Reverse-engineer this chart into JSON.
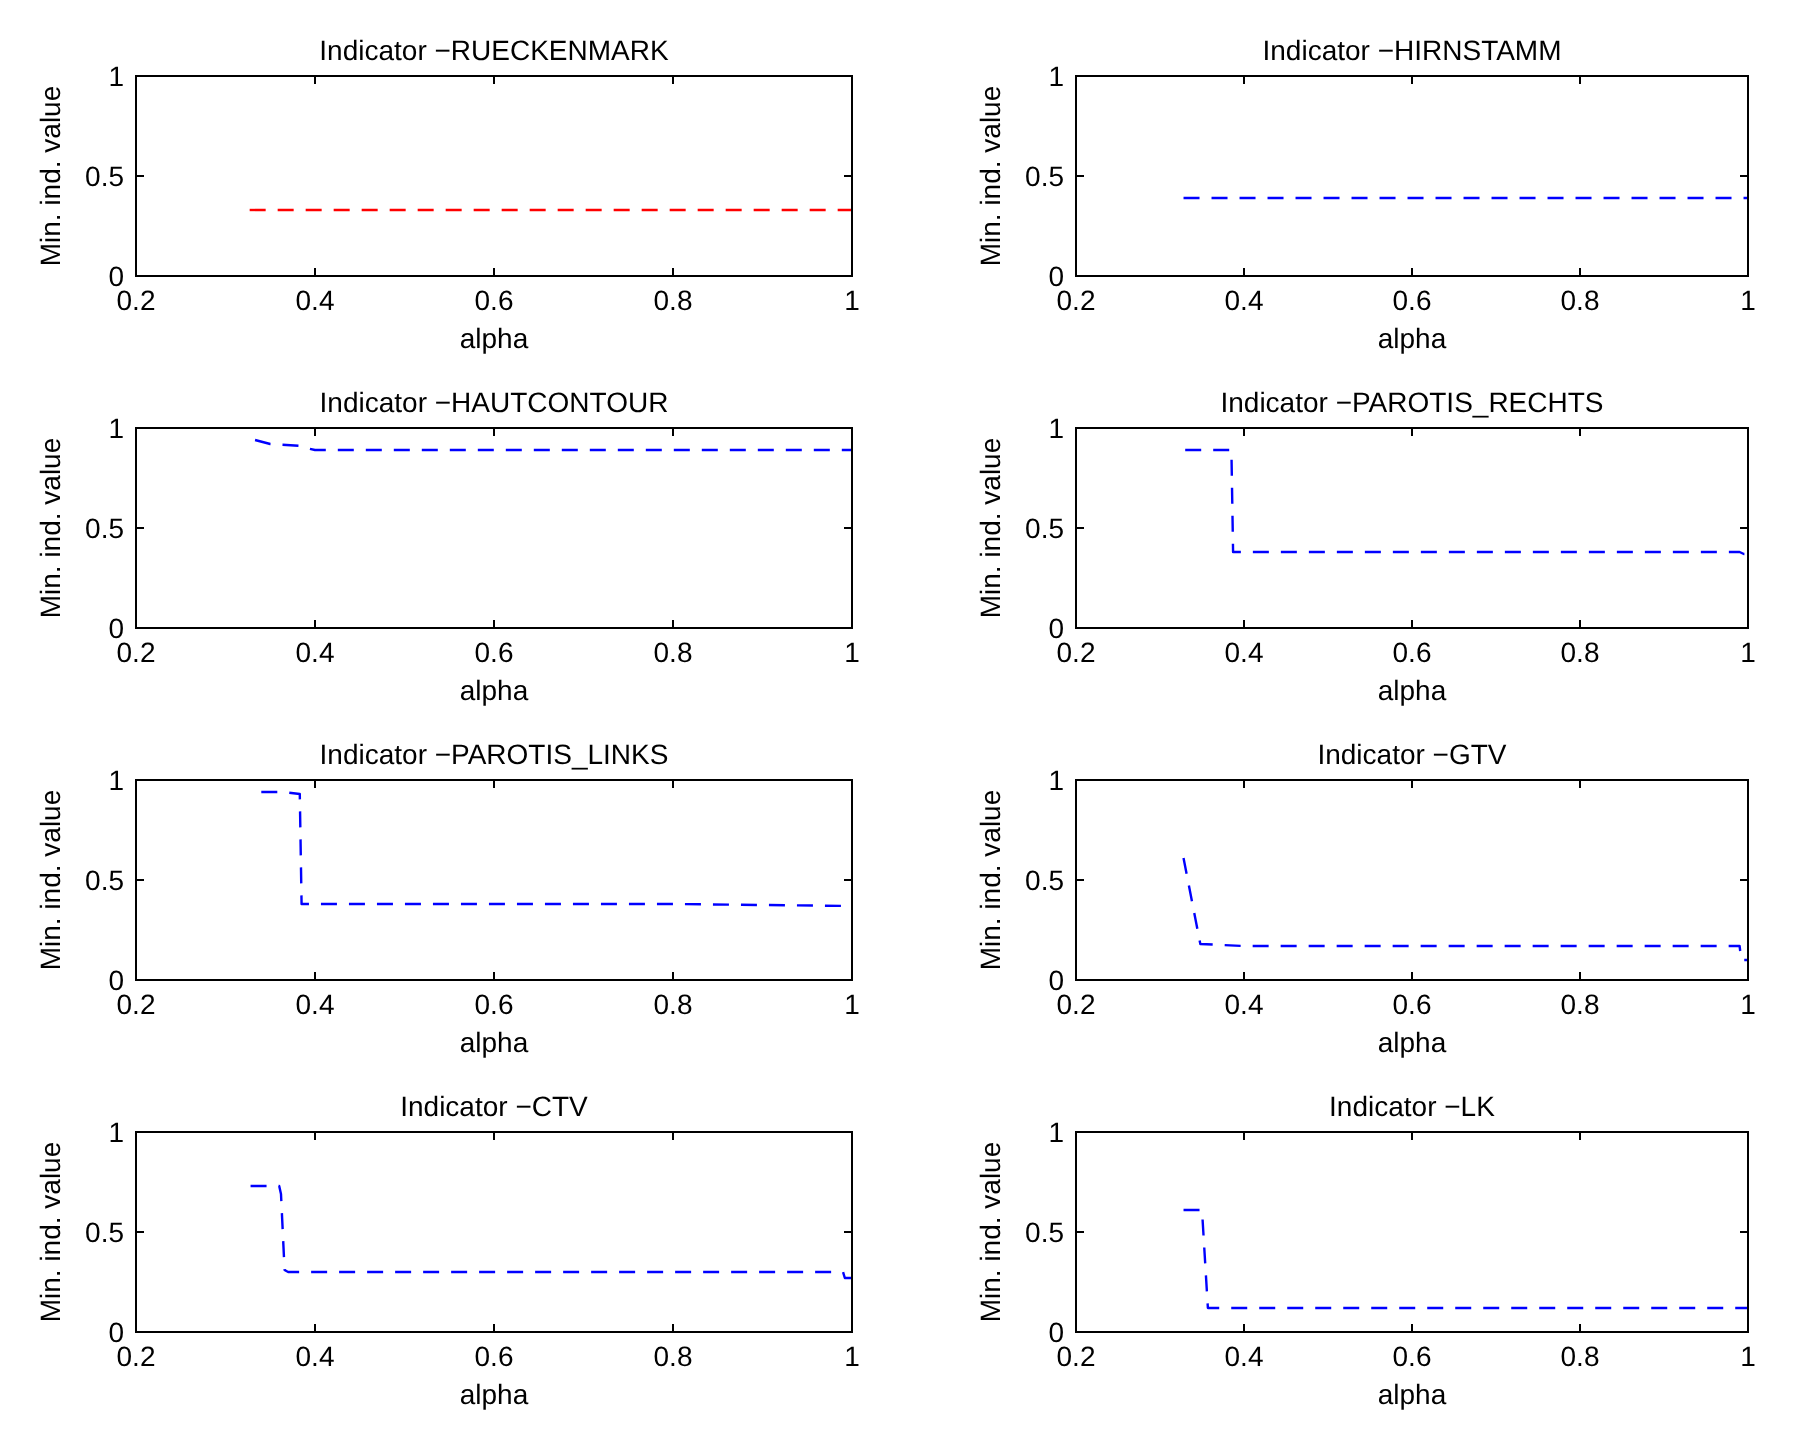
{
  "chart_data": [
    {
      "type": "line",
      "title": "Indicator −RUECKENMARK",
      "xlabel": "alpha",
      "ylabel": "Min. ind. value",
      "xlim": [
        0.2,
        1
      ],
      "ylim": [
        0,
        1
      ],
      "xticks": [
        0.2,
        0.4,
        0.6,
        0.8,
        1
      ],
      "yticks": [
        0,
        0.5,
        1
      ],
      "line_style": "dashed",
      "series": [
        {
          "color": "#ff0000",
          "x": [
            0.327,
            1
          ],
          "values": [
            0.33,
            0.33
          ]
        }
      ]
    },
    {
      "type": "line",
      "title": "Indicator −HIRNSTAMM",
      "xlabel": "alpha",
      "ylabel": "Min. ind. value",
      "xlim": [
        0.2,
        1
      ],
      "ylim": [
        0,
        1
      ],
      "xticks": [
        0.2,
        0.4,
        0.6,
        0.8,
        1
      ],
      "yticks": [
        0,
        0.5,
        1
      ],
      "line_style": "dashed",
      "series": [
        {
          "color": "#0000ff",
          "x": [
            0.328,
            1
          ],
          "values": [
            0.39,
            0.39
          ]
        }
      ]
    },
    {
      "type": "line",
      "title": "Indicator −HAUTCONTOUR",
      "xlabel": "alpha",
      "ylabel": "Min. ind. value",
      "xlim": [
        0.2,
        1
      ],
      "ylim": [
        0,
        1
      ],
      "xticks": [
        0.2,
        0.4,
        0.6,
        0.8,
        1
      ],
      "yticks": [
        0,
        0.5,
        1
      ],
      "line_style": "dashed",
      "series": [
        {
          "color": "#0000ff",
          "x": [
            0.333,
            0.35,
            0.385,
            0.39,
            0.4,
            1
          ],
          "values": [
            0.94,
            0.92,
            0.91,
            0.9,
            0.89,
            0.89
          ]
        }
      ]
    },
    {
      "type": "line",
      "title": "Indicator −PAROTIS_RECHTS",
      "xlabel": "alpha",
      "ylabel": "Min. ind. value",
      "xlim": [
        0.2,
        1
      ],
      "ylim": [
        0,
        1
      ],
      "xticks": [
        0.2,
        0.4,
        0.6,
        0.8,
        1
      ],
      "yticks": [
        0,
        0.5,
        1
      ],
      "line_style": "dashed",
      "series": [
        {
          "color": "#0000ff",
          "x": [
            0.33,
            0.385,
            0.387,
            0.99,
            0.995,
            1
          ],
          "values": [
            0.89,
            0.89,
            0.38,
            0.38,
            0.37,
            0.37
          ]
        }
      ]
    },
    {
      "type": "line",
      "title": "Indicator −PAROTIS_LINKS",
      "xlabel": "alpha",
      "ylabel": "Min. ind. value",
      "xlim": [
        0.2,
        1
      ],
      "ylim": [
        0,
        1
      ],
      "xticks": [
        0.2,
        0.4,
        0.6,
        0.8,
        1
      ],
      "yticks": [
        0,
        0.5,
        1
      ],
      "line_style": "dashed",
      "series": [
        {
          "color": "#0000ff",
          "x": [
            0.34,
            0.365,
            0.383,
            0.385,
            0.8,
            1
          ],
          "values": [
            0.94,
            0.94,
            0.93,
            0.38,
            0.38,
            0.37
          ]
        }
      ]
    },
    {
      "type": "line",
      "title": "Indicator −GTV",
      "xlabel": "alpha",
      "ylabel": "Min. ind. value",
      "xlim": [
        0.2,
        1
      ],
      "ylim": [
        0,
        1
      ],
      "xticks": [
        0.2,
        0.4,
        0.6,
        0.8,
        1
      ],
      "yticks": [
        0,
        0.5,
        1
      ],
      "line_style": "dashed",
      "series": [
        {
          "color": "#0000ff",
          "x": [
            0.328,
            0.348,
            0.4,
            0.99,
            0.992,
            1
          ],
          "values": [
            0.61,
            0.18,
            0.17,
            0.17,
            0.1,
            0.1
          ]
        }
      ]
    },
    {
      "type": "line",
      "title": "Indicator −CTV",
      "xlabel": "alpha",
      "ylabel": "Min. ind. value",
      "xlim": [
        0.2,
        1
      ],
      "ylim": [
        0,
        1
      ],
      "xticks": [
        0.2,
        0.4,
        0.6,
        0.8,
        1
      ],
      "yticks": [
        0,
        0.5,
        1
      ],
      "line_style": "dashed",
      "series": [
        {
          "color": "#0000ff",
          "x": [
            0.328,
            0.36,
            0.362,
            0.366,
            0.37,
            0.99,
            0.992,
            1
          ],
          "values": [
            0.73,
            0.73,
            0.69,
            0.31,
            0.3,
            0.3,
            0.27,
            0.27
          ]
        }
      ]
    },
    {
      "type": "line",
      "title": "Indicator −LK",
      "xlabel": "alpha",
      "ylabel": "Min. ind. value",
      "xlim": [
        0.2,
        1
      ],
      "ylim": [
        0,
        1
      ],
      "xticks": [
        0.2,
        0.4,
        0.6,
        0.8,
        1
      ],
      "yticks": [
        0,
        0.5,
        1
      ],
      "line_style": "dashed",
      "series": [
        {
          "color": "#0000ff",
          "x": [
            0.328,
            0.35,
            0.357,
            1
          ],
          "values": [
            0.61,
            0.61,
            0.12,
            0.12
          ]
        }
      ]
    }
  ]
}
